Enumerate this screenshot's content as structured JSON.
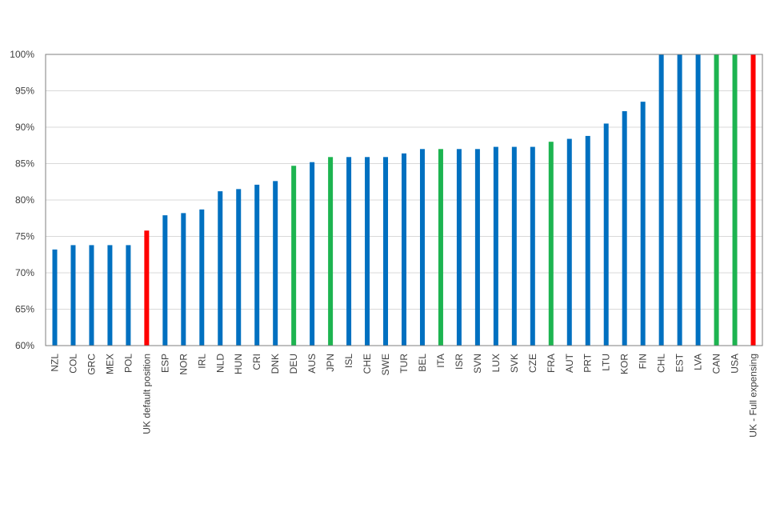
{
  "chart_data": {
    "type": "bar",
    "title": "",
    "xlabel": "",
    "ylabel": "",
    "ylim": [
      60,
      100
    ],
    "yticks": [
      60,
      65,
      70,
      75,
      80,
      85,
      90,
      95,
      100
    ],
    "ytick_labels": [
      "60%",
      "65%",
      "70%",
      "75%",
      "80%",
      "85%",
      "90%",
      "95%",
      "100%"
    ],
    "grid": true,
    "legend": "none",
    "categories": [
      "NZL",
      "COL",
      "GRC",
      "MEX",
      "POL",
      "UK default position",
      "ESP",
      "NOR",
      "IRL",
      "NLD",
      "HUN",
      "CRI",
      "DNK",
      "DEU",
      "AUS",
      "JPN",
      "ISL",
      "CHE",
      "SWE",
      "TUR",
      "BEL",
      "ITA",
      "ISR",
      "SVN",
      "LUX",
      "SVK",
      "CZE",
      "FRA",
      "AUT",
      "PRT",
      "LTU",
      "KOR",
      "FIN",
      "CHL",
      "EST",
      "LVA",
      "CAN",
      "USA",
      "UK - Full expensing"
    ],
    "values": [
      73.2,
      73.8,
      73.8,
      73.8,
      73.8,
      75.8,
      77.9,
      78.2,
      78.7,
      81.2,
      81.5,
      82.1,
      82.6,
      84.7,
      85.2,
      85.9,
      85.9,
      85.9,
      85.9,
      86.4,
      87.0,
      87.0,
      87.0,
      87.0,
      87.3,
      87.3,
      87.3,
      88.0,
      88.4,
      88.8,
      90.5,
      92.2,
      93.5,
      100,
      100,
      100,
      100,
      100,
      100
    ],
    "bar_groups": [
      "blue",
      "blue",
      "blue",
      "blue",
      "blue",
      "red",
      "blue",
      "blue",
      "blue",
      "blue",
      "blue",
      "blue",
      "blue",
      "green",
      "blue",
      "green",
      "blue",
      "blue",
      "blue",
      "blue",
      "blue",
      "green",
      "blue",
      "blue",
      "blue",
      "blue",
      "blue",
      "green",
      "blue",
      "blue",
      "blue",
      "blue",
      "blue",
      "blue",
      "blue",
      "blue",
      "green",
      "green",
      "red"
    ],
    "colors": {
      "blue": "#0070c0",
      "green": "#1db450",
      "red": "#ff0000"
    }
  }
}
